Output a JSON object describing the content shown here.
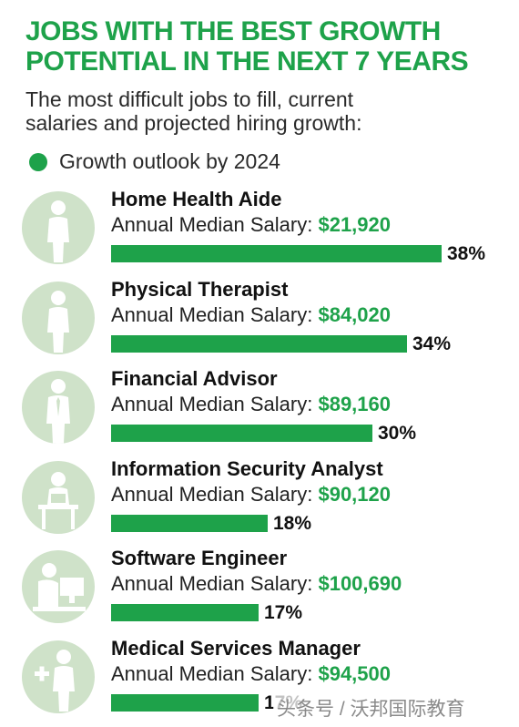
{
  "header": {
    "title_line1": "JOBS WITH THE BEST GROWTH",
    "title_line2": "POTENTIAL IN THE NEXT 7 YEARS",
    "subtitle_line1": "The most difficult jobs to fill, current",
    "subtitle_line2": "salaries and projected hiring growth:"
  },
  "legend": {
    "label": "Growth outlook by 2024"
  },
  "colors": {
    "accent": "#1ea24a",
    "icon_circle": "#cfe2c9",
    "icon_figure": "#ffffff"
  },
  "salary_label": "Annual Median Salary:",
  "watermark": "头条号 / 沃邦国际教育",
  "chart_data": {
    "type": "bar",
    "orientation": "horizontal",
    "categories": [
      "Home Health Aide",
      "Physical Therapist",
      "Financial Advisor",
      "Information Security Analyst",
      "Software Engineer",
      "Medical Services Manager"
    ],
    "series": [
      {
        "name": "Growth outlook by 2024",
        "values": [
          38,
          34,
          30,
          18,
          17,
          17
        ]
      }
    ],
    "value_labels": [
      "38%",
      "34%",
      "30%",
      "18%",
      "17%",
      "17%"
    ],
    "salaries": [
      "$21,920",
      "$84,020",
      "$89,160",
      "$90,120",
      "$100,690",
      "$94,500"
    ],
    "icons": [
      "person-icon",
      "person-icon",
      "businessman-icon",
      "desk-worker-icon",
      "computer-user-icon",
      "medical-person-icon"
    ],
    "title": "JOBS WITH THE BEST GROWTH POTENTIAL IN THE NEXT 7 YEARS",
    "xlim": [
      0,
      38
    ],
    "grid": false,
    "legend": "top-left"
  }
}
